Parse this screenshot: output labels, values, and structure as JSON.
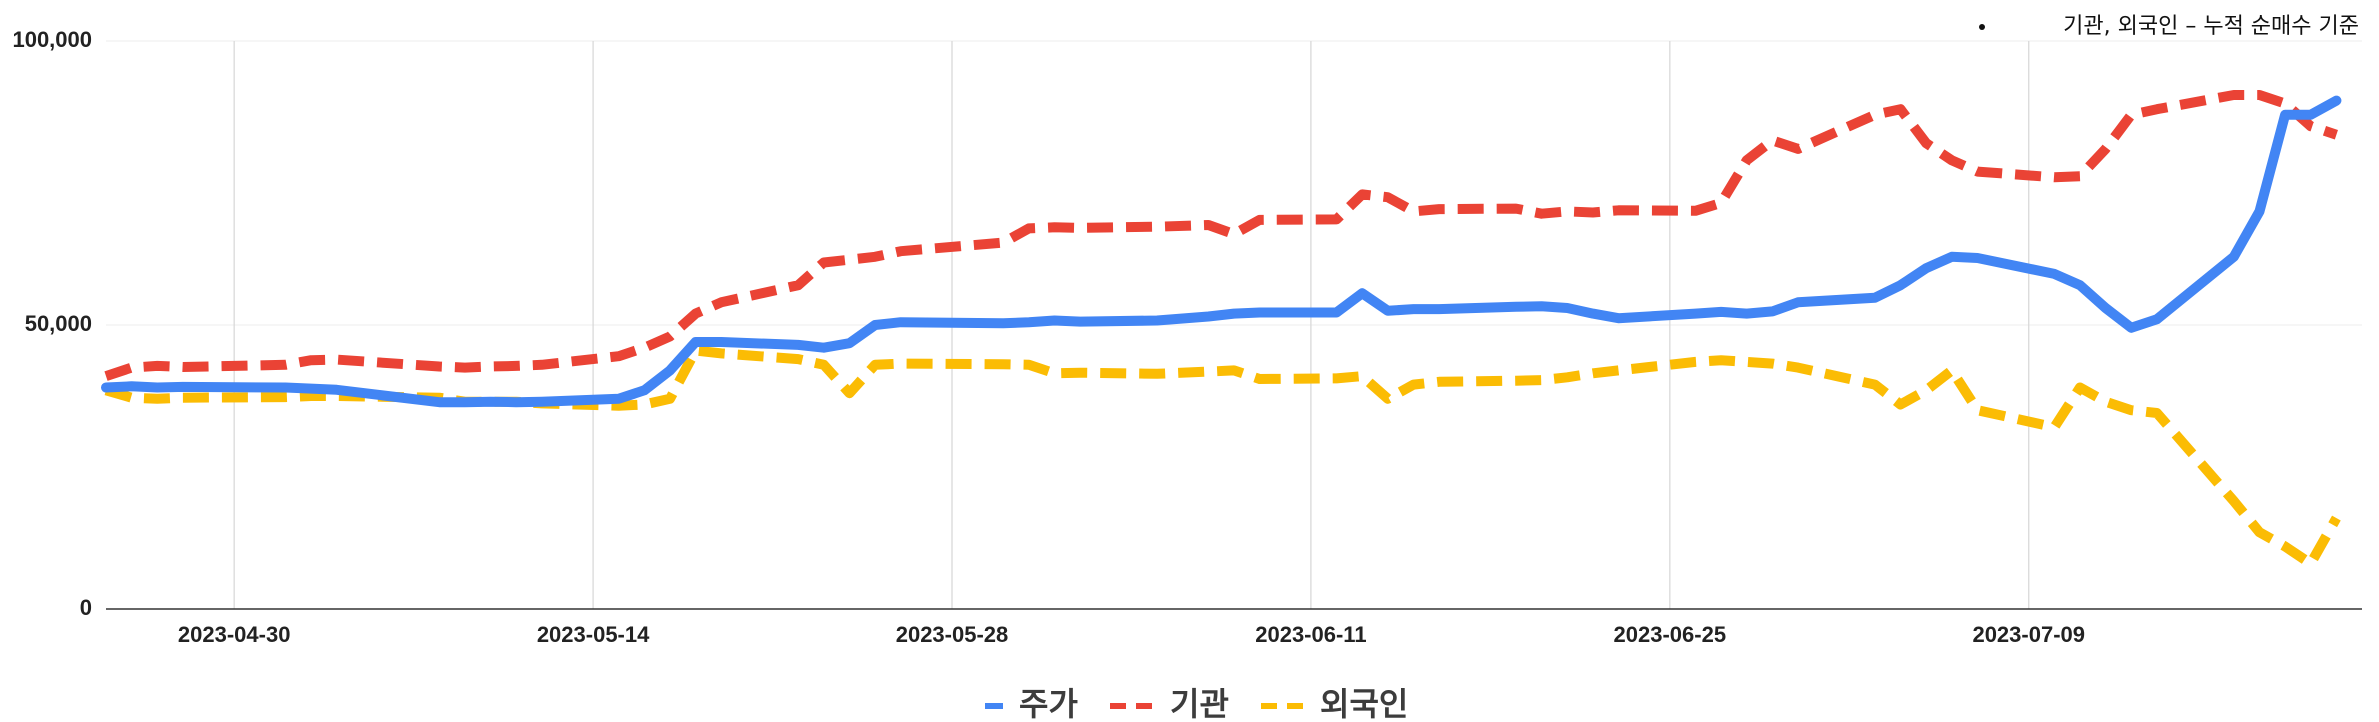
{
  "chart_data": {
    "type": "line",
    "title": "",
    "xlabel": "",
    "ylabel": "",
    "annotation": "기관, 외국인 – 누적 순매수 기준",
    "ylim": [
      0,
      100000
    ],
    "yticks": [
      {
        "value": 0,
        "label": "0"
      },
      {
        "value": 50000,
        "label": "50,000"
      },
      {
        "value": 100000,
        "label": "100,000"
      }
    ],
    "xlim": [
      "2023-04-25",
      "2023-07-22"
    ],
    "xticks": [
      {
        "value": "2023-04-30",
        "label": "2023-04-30"
      },
      {
        "value": "2023-05-14",
        "label": "2023-05-14"
      },
      {
        "value": "2023-05-28",
        "label": "2023-05-28"
      },
      {
        "value": "2023-06-11",
        "label": "2023-06-11"
      },
      {
        "value": "2023-06-25",
        "label": "2023-06-25"
      },
      {
        "value": "2023-07-09",
        "label": "2023-07-09"
      }
    ],
    "grid": {
      "vertical": true,
      "horizontal": true
    },
    "legend_position": "bottom",
    "x": [
      "2023-04-25",
      "2023-04-26",
      "2023-04-27",
      "2023-04-28",
      "2023-05-02",
      "2023-05-03",
      "2023-05-04",
      "2023-05-08",
      "2023-05-09",
      "2023-05-10",
      "2023-05-11",
      "2023-05-12",
      "2023-05-15",
      "2023-05-16",
      "2023-05-17",
      "2023-05-18",
      "2023-05-19",
      "2023-05-22",
      "2023-05-23",
      "2023-05-24",
      "2023-05-25",
      "2023-05-26",
      "2023-05-30",
      "2023-05-31",
      "2023-06-01",
      "2023-06-02",
      "2023-06-05",
      "2023-06-07",
      "2023-06-08",
      "2023-06-09",
      "2023-06-12",
      "2023-06-13",
      "2023-06-14",
      "2023-06-15",
      "2023-06-16",
      "2023-06-19",
      "2023-06-20",
      "2023-06-21",
      "2023-06-22",
      "2023-06-23",
      "2023-06-26",
      "2023-06-27",
      "2023-06-28",
      "2023-06-29",
      "2023-06-30",
      "2023-07-03",
      "2023-07-04",
      "2023-07-05",
      "2023-07-06",
      "2023-07-07",
      "2023-07-10",
      "2023-07-11",
      "2023-07-12",
      "2023-07-13",
      "2023-07-14",
      "2023-07-17",
      "2023-07-18",
      "2023-07-19",
      "2023-07-20",
      "2023-07-21"
    ],
    "series": [
      {
        "name": "주가",
        "color": "#4285f4",
        "dash": "solid",
        "values": [
          39000,
          39200,
          39000,
          39100,
          39000,
          38800,
          38600,
          36400,
          36400,
          36500,
          36400,
          36500,
          37000,
          38500,
          42000,
          47000,
          47000,
          46500,
          46000,
          46800,
          50000,
          50500,
          50300,
          50500,
          50800,
          50600,
          50800,
          51500,
          52000,
          52200,
          52200,
          55600,
          52500,
          52800,
          52800,
          53200,
          53300,
          53000,
          52000,
          51200,
          52000,
          52300,
          52000,
          52400,
          54000,
          54800,
          57000,
          60000,
          62000,
          61800,
          59000,
          57000,
          53000,
          49500,
          51000,
          62000,
          70000,
          87000,
          87000,
          89500
        ]
      },
      {
        "name": "기관",
        "color": "#ea4335",
        "dash": "dashed",
        "values": [
          41000,
          42500,
          42800,
          42600,
          43000,
          43800,
          43900,
          42700,
          42500,
          42700,
          42800,
          43000,
          44500,
          46000,
          48000,
          52000,
          54000,
          57000,
          61000,
          61500,
          62000,
          63000,
          64500,
          67000,
          67200,
          67100,
          67300,
          67600,
          66000,
          68500,
          68600,
          73000,
          72500,
          70000,
          70400,
          70500,
          69600,
          70000,
          69800,
          70200,
          70100,
          71500,
          79000,
          82500,
          81000,
          87000,
          88000,
          82000,
          79000,
          77000,
          76000,
          76200,
          81000,
          87000,
          88000,
          90500,
          90500,
          89000,
          85000,
          83500
        ]
      },
      {
        "name": "외국인",
        "color": "#fbbc04",
        "dash": "dashed",
        "values": [
          38500,
          37200,
          37000,
          37200,
          37300,
          37500,
          37500,
          37200,
          36500,
          36500,
          36500,
          36200,
          35800,
          36000,
          37000,
          45500,
          45000,
          44000,
          43000,
          38000,
          43000,
          43200,
          43100,
          43000,
          41500,
          41600,
          41400,
          41800,
          42000,
          40500,
          40600,
          41000,
          37000,
          39500,
          40000,
          40200,
          40300,
          40800,
          41500,
          42000,
          43500,
          43800,
          43500,
          43200,
          42500,
          39500,
          36000,
          38500,
          42000,
          35000,
          32000,
          39000,
          36500,
          35000,
          34500,
          19000,
          13500,
          11000,
          8000,
          16000
        ]
      }
    ]
  }
}
